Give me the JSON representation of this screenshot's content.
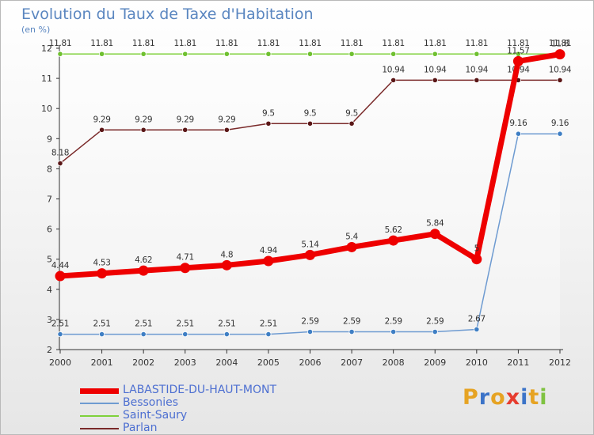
{
  "chart_data": {
    "type": "line",
    "title": "Evolution du Taux de Taxe d'Habitation",
    "ylabel": "(en %)",
    "xlabel": "",
    "ylim": [
      2,
      12
    ],
    "yticks": [
      2,
      3,
      4,
      5,
      6,
      7,
      8,
      9,
      10,
      11,
      12
    ],
    "x": [
      "2000",
      "2001",
      "2002",
      "2003",
      "2004",
      "2005",
      "2006",
      "2007",
      "2008",
      "2009",
      "2010",
      "2011",
      "2012"
    ],
    "series": [
      {
        "name": "Saint-Saury",
        "color": "#7fd13b",
        "marker_color": "#6fc030",
        "values": [
          11.81,
          11.81,
          11.81,
          11.81,
          11.81,
          11.81,
          11.81,
          11.81,
          11.81,
          11.81,
          11.81,
          11.81,
          11.81
        ],
        "labels": [
          "11.81",
          "11.81",
          "11.81",
          "11.81",
          "11.81",
          "11.81",
          "11.81",
          "11.81",
          "11.81",
          "11.81",
          "11.81",
          "11.81",
          "11.81"
        ]
      },
      {
        "name": "Parlan",
        "color": "#7a2a2a",
        "marker_color": "#5a1616",
        "values": [
          8.18,
          9.29,
          9.29,
          9.29,
          9.29,
          9.5,
          9.5,
          9.5,
          10.94,
          10.94,
          10.94,
          10.94,
          10.94
        ],
        "labels": [
          "8.18",
          "9.29",
          "9.29",
          "9.29",
          "9.29",
          "9.5",
          "9.5",
          "9.5",
          "10.94",
          "10.94",
          "10.94",
          "10.94",
          "10.94"
        ]
      },
      {
        "name": "Bessonies",
        "color": "#6e9bd1",
        "marker_color": "#3f7fc4",
        "values": [
          2.51,
          2.51,
          2.51,
          2.51,
          2.51,
          2.51,
          2.59,
          2.59,
          2.59,
          2.59,
          2.67,
          9.16,
          9.16
        ],
        "labels": [
          "2.51",
          "2.51",
          "2.51",
          "2.51",
          "2.51",
          "2.51",
          "2.59",
          "2.59",
          "2.59",
          "2.59",
          "2.67",
          "9.16",
          "9.16"
        ]
      },
      {
        "name": "LABASTIDE-DU-HAUT-MONT",
        "color": "#ee0000",
        "marker_color": "#ee0000",
        "values": [
          4.44,
          4.53,
          4.62,
          4.71,
          4.8,
          4.94,
          5.14,
          5.4,
          5.62,
          5.84,
          5,
          11.57,
          11.8
        ],
        "labels": [
          "4.44",
          "4.53",
          "4.62",
          "4.71",
          "4.8",
          "4.94",
          "5.14",
          "5.4",
          "5.62",
          "5.84",
          "5",
          "11.57",
          "11.8"
        ]
      }
    ],
    "legend_order": [
      "LABASTIDE-DU-HAUT-MONT",
      "Bessonies",
      "Saint-Saury",
      "Parlan"
    ],
    "legend_position": "bottom-left"
  },
  "branding": {
    "letters": [
      "P",
      "r",
      "o",
      "x",
      "i",
      "t",
      "i"
    ],
    "colors": [
      "#e6a323",
      "#3b73c8",
      "#e6a323",
      "#e63c2e",
      "#3b73c8",
      "#e6a323",
      "#7fc241"
    ]
  }
}
